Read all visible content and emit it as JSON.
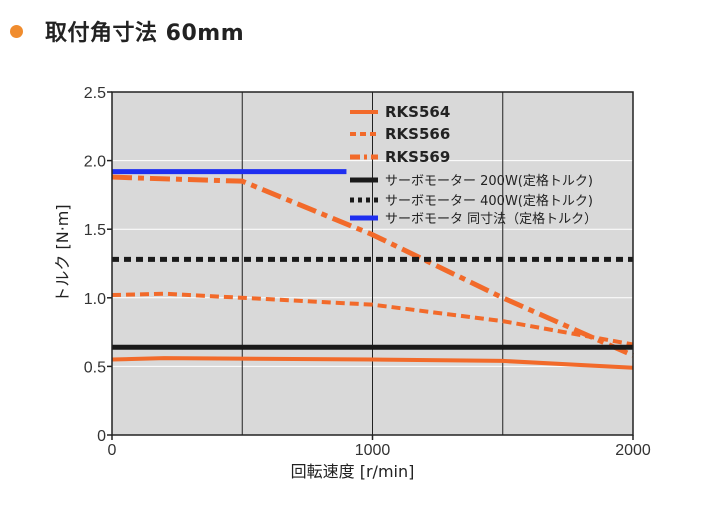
{
  "heading": {
    "title": "取付角寸法 60mm"
  },
  "colors": {
    "accent": "#f08c2e",
    "rks": "#f26a2a",
    "servo": "#1a1a1a",
    "servo_blue": "#1f2ff0",
    "plot_bg": "#d9d9d9"
  },
  "chart_data": {
    "type": "line",
    "xlabel": "回転速度 [r/min]",
    "ylabel": "トルク [N·m]",
    "xlim": [
      0,
      2000
    ],
    "ylim": [
      0,
      2.5
    ],
    "x_ticks": [
      "0",
      "1000",
      "2000"
    ],
    "y_ticks": [
      "0",
      "0.5",
      "1.0",
      "1.5",
      "2.0",
      "2.5"
    ],
    "grid": true,
    "legend_position": "top-right",
    "series": [
      {
        "name": "RKS564",
        "style": "solid",
        "color": "#f26a2a",
        "x": [
          0,
          200,
          1000,
          1500,
          2000
        ],
        "y": [
          0.55,
          0.56,
          0.55,
          0.54,
          0.49
        ]
      },
      {
        "name": "RKS566",
        "style": "dashed",
        "color": "#f26a2a",
        "x": [
          0,
          200,
          1000,
          1500,
          2000
        ],
        "y": [
          1.02,
          1.03,
          0.95,
          0.83,
          0.66
        ]
      },
      {
        "name": "RKS569",
        "style": "dashdot",
        "color": "#f26a2a",
        "x": [
          0,
          150,
          500,
          1000,
          1500,
          2000
        ],
        "y": [
          1.88,
          1.87,
          1.85,
          1.46,
          1.0,
          0.58
        ]
      },
      {
        "name": "サーボモーター 200W(定格トルク)",
        "style": "solid-thick",
        "color": "#1a1a1a",
        "x": [
          0,
          2000
        ],
        "y": [
          0.64,
          0.64
        ]
      },
      {
        "name": "サーボモーター 400W(定格トルク)",
        "style": "dotted-thick",
        "color": "#1a1a1a",
        "x": [
          0,
          2000
        ],
        "y": [
          1.28,
          1.28
        ]
      },
      {
        "name": "サーボモータ 同寸法（定格トルク）",
        "style": "solid-thick",
        "color": "#1f2ff0",
        "x": [
          0,
          900
        ],
        "y": [
          1.92,
          1.92
        ]
      }
    ]
  }
}
